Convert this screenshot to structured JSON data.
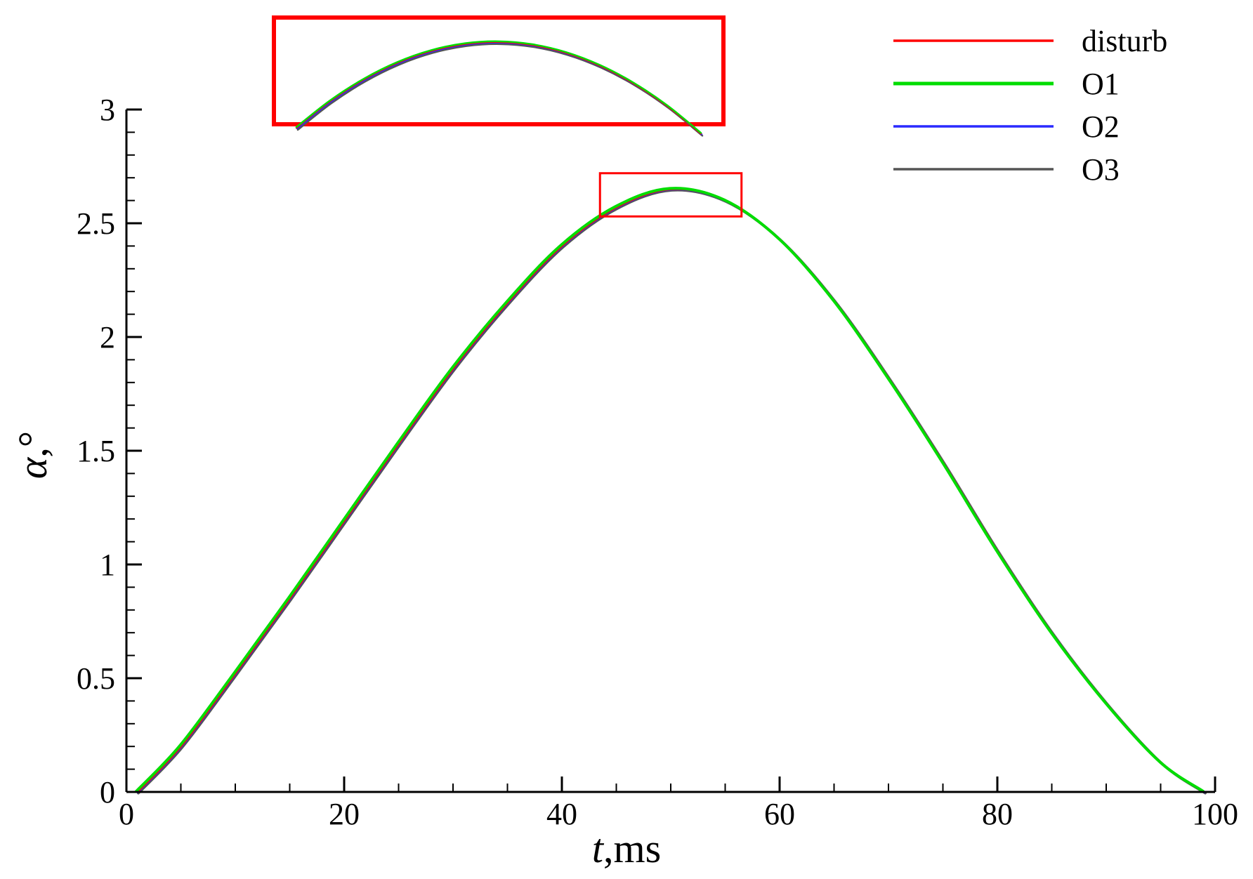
{
  "chart_data": {
    "type": "line",
    "xlabel_var": "t",
    "xlabel_unit": ",ms",
    "ylabel_var": "α",
    "ylabel_unit": ",°",
    "xlim": [
      0,
      100
    ],
    "ylim": [
      0,
      3
    ],
    "x_ticks": [
      "0",
      "20",
      "40",
      "60",
      "80",
      "100"
    ],
    "y_ticks": [
      "0",
      "0.5",
      "1",
      "1.5",
      "2",
      "2.5",
      "3"
    ],
    "legend_position": "top-right",
    "grid": false,
    "series": [
      {
        "name": "disturb",
        "color": "#ff0000",
        "x": [
          1,
          5,
          10,
          15,
          20,
          25,
          30,
          35,
          40,
          45,
          50,
          55,
          60,
          65,
          70,
          75,
          80,
          85,
          90,
          95,
          99
        ],
        "y": [
          0,
          0.2,
          0.52,
          0.85,
          1.19,
          1.53,
          1.86,
          2.15,
          2.4,
          2.57,
          2.65,
          2.6,
          2.43,
          2.16,
          1.82,
          1.45,
          1.06,
          0.7,
          0.39,
          0.13,
          0
        ]
      },
      {
        "name": "O1",
        "color": "#00dd00",
        "x": [
          1,
          5,
          10,
          15,
          20,
          25,
          30,
          35,
          40,
          45,
          50,
          55,
          60,
          65,
          70,
          75,
          80,
          85,
          90,
          95,
          99
        ],
        "y": [
          0,
          0.2,
          0.52,
          0.85,
          1.19,
          1.53,
          1.86,
          2.15,
          2.4,
          2.57,
          2.65,
          2.6,
          2.43,
          2.16,
          1.82,
          1.45,
          1.06,
          0.7,
          0.39,
          0.13,
          0
        ]
      },
      {
        "name": "O2",
        "color": "#2a2aff",
        "x": [
          1,
          5,
          10,
          15,
          20,
          25,
          30,
          35,
          40,
          45,
          50,
          55,
          60,
          65,
          70,
          75,
          80,
          85,
          90,
          95,
          99
        ],
        "y": [
          0,
          0.2,
          0.52,
          0.85,
          1.19,
          1.53,
          1.86,
          2.15,
          2.4,
          2.57,
          2.65,
          2.6,
          2.43,
          2.16,
          1.82,
          1.45,
          1.06,
          0.7,
          0.39,
          0.13,
          0
        ]
      },
      {
        "name": "O3",
        "color": "#555555",
        "x": [
          1,
          5,
          10,
          15,
          20,
          25,
          30,
          35,
          40,
          45,
          50,
          55,
          60,
          65,
          70,
          75,
          80,
          85,
          90,
          95,
          99
        ],
        "y": [
          0,
          0.2,
          0.52,
          0.85,
          1.19,
          1.53,
          1.86,
          2.15,
          2.4,
          2.57,
          2.65,
          2.6,
          2.43,
          2.16,
          1.82,
          1.45,
          1.06,
          0.7,
          0.39,
          0.13,
          0
        ]
      }
    ],
    "zoom_region": {
      "x": [
        43.5,
        56.5
      ],
      "y": [
        2.53,
        2.72
      ],
      "color": "#ff0000"
    }
  }
}
